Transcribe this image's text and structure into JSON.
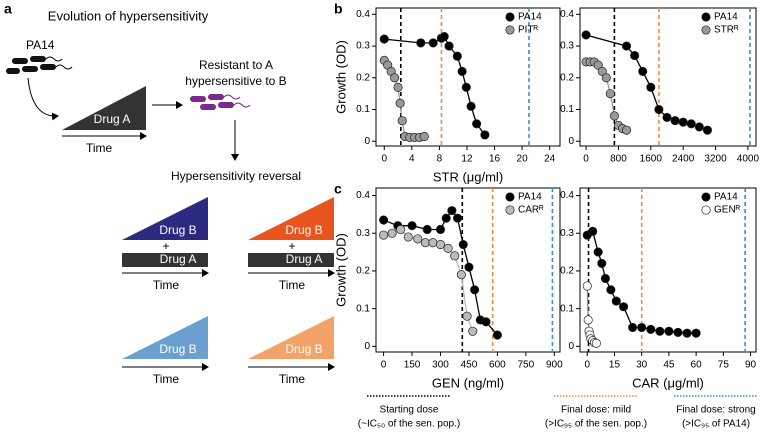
{
  "panel_labels": [
    "a",
    "b",
    "c"
  ],
  "diagram": {
    "title": "Evolution of hypersensitivity",
    "strain": "PA14",
    "drug_a": "Drug A",
    "time": "Time",
    "result": [
      "Resistant to A",
      "hypersensitive to B"
    ],
    "reversal": "Hypersensitivity reversal",
    "combos": [
      {
        "drug": "Drug B",
        "plus": "+",
        "base": "Drug A",
        "time": "Time",
        "color": "#2b2a80"
      },
      {
        "drug": "Drug B",
        "plus": "+",
        "base": "Drug A",
        "time": "Time",
        "color": "#e8541e"
      },
      {
        "drug": "Drug B",
        "time": "Time",
        "color": "#6a9fd0"
      },
      {
        "drug": "Drug B",
        "time": "Time",
        "color": "#f3a26a"
      }
    ]
  },
  "chart_data": [
    {
      "type": "line",
      "x_label": "STR (μg/ml)",
      "y_label": "Growth (OD)",
      "xlim": [
        -1.2,
        25.5
      ],
      "xticks": [
        0,
        4,
        8,
        12,
        16,
        20,
        24
      ],
      "ylim": [
        -0.015,
        0.42
      ],
      "yticks": [
        0,
        0.1,
        0.2,
        0.3,
        0.4
      ],
      "legend": "upper right",
      "series": [
        {
          "name": "PA14",
          "color": "#000000",
          "x": [
            0,
            5.3,
            7.1,
            8.3,
            8.7,
            9.4,
            10.6,
            11.3,
            11.9,
            12.6,
            13.4,
            14.6
          ],
          "values": [
            0.322,
            0.31,
            0.31,
            0.325,
            0.33,
            0.3,
            0.268,
            0.22,
            0.17,
            0.11,
            0.055,
            0.02
          ]
        },
        {
          "name": "PITᴿ",
          "color": "#999999",
          "x": [
            0,
            0.5,
            1,
            1.5,
            2,
            2.3,
            2.6,
            3,
            3.7,
            4.4,
            5.1,
            5.8
          ],
          "values": [
            0.255,
            0.24,
            0.22,
            0.2,
            0.17,
            0.12,
            0.065,
            0.015,
            0.012,
            0.012,
            0.012,
            0.015
          ]
        }
      ],
      "vlines": [
        {
          "value": 2.4,
          "color": "#000000"
        },
        {
          "value": 8.3,
          "color": "#f08a3c"
        },
        {
          "value": 21,
          "color": "#3a8fc4"
        }
      ]
    },
    {
      "type": "line",
      "xlim": [
        -150,
        4200
      ],
      "xticks": [
        0,
        800,
        1600,
        2400,
        3200,
        4000
      ],
      "ylim": [
        -0.015,
        0.42
      ],
      "yticks": [
        0,
        0.1,
        0.2,
        0.3,
        0.4
      ],
      "legend": "upper right",
      "series": [
        {
          "name": "PA14",
          "color": "#000000",
          "x": [
            0,
            1000,
            1200,
            1400,
            1600,
            1800,
            2000,
            2200,
            2400,
            2600,
            2800,
            3000
          ],
          "values": [
            0.335,
            0.3,
            0.27,
            0.22,
            0.17,
            0.1,
            0.075,
            0.065,
            0.06,
            0.055,
            0.045,
            0.035
          ]
        },
        {
          "name": "STRᴿ",
          "color": "#999999",
          "x": [
            0,
            100,
            200,
            300,
            400,
            500,
            600,
            700,
            800,
            900,
            1000
          ],
          "values": [
            0.25,
            0.25,
            0.25,
            0.24,
            0.22,
            0.2,
            0.15,
            0.08,
            0.05,
            0.04,
            0.035
          ]
        }
      ],
      "vlines": [
        {
          "value": 700,
          "color": "#000000"
        },
        {
          "value": 1800,
          "color": "#f08a3c"
        },
        {
          "value": 4050,
          "color": "#3a8fc4"
        }
      ]
    },
    {
      "type": "line",
      "x_label": "GEN (ng/ml)",
      "y_label": "Growth (OD)",
      "xlim": [
        -40,
        930
      ],
      "xticks": [
        0,
        150,
        300,
        450,
        600,
        750,
        900
      ],
      "ylim": [
        -0.015,
        0.42
      ],
      "yticks": [
        0,
        0.1,
        0.2,
        0.3,
        0.4
      ],
      "legend": "upper right",
      "series": [
        {
          "name": "PA14",
          "color": "#000000",
          "x": [
            0,
            75,
            150,
            230,
            300,
            330,
            360,
            390,
            420,
            450,
            480,
            510,
            540,
            600
          ],
          "values": [
            0.335,
            0.32,
            0.32,
            0.31,
            0.31,
            0.34,
            0.36,
            0.34,
            0.27,
            0.21,
            0.15,
            0.07,
            0.065,
            0.03
          ]
        },
        {
          "name": "CARᴿ",
          "color": "#bbbbbb",
          "x": [
            0,
            45,
            90,
            130,
            180,
            220,
            260,
            300,
            340,
            375,
            410,
            440,
            470
          ],
          "values": [
            0.295,
            0.3,
            0.31,
            0.29,
            0.285,
            0.275,
            0.275,
            0.27,
            0.26,
            0.24,
            0.19,
            0.08,
            0.04
          ]
        }
      ],
      "vlines": [
        {
          "value": 415,
          "color": "#000000"
        },
        {
          "value": 575,
          "color": "#f08a3c"
        },
        {
          "value": 890,
          "color": "#3a8fc4"
        }
      ]
    },
    {
      "type": "line",
      "x_label": "CAR (μg/ml)",
      "xlim": [
        -4,
        93
      ],
      "xticks": [
        0,
        15,
        30,
        45,
        60,
        75,
        90
      ],
      "ylim": [
        -0.015,
        0.42
      ],
      "yticks": [
        0,
        0.1,
        0.2,
        0.3,
        0.4
      ],
      "legend": "upper right",
      "series": [
        {
          "name": "PA14",
          "color": "#000000",
          "x": [
            0,
            3,
            6,
            8,
            10,
            13,
            16,
            20,
            25,
            30,
            35,
            40,
            45,
            50,
            55,
            60
          ],
          "values": [
            0.295,
            0.305,
            0.25,
            0.22,
            0.18,
            0.15,
            0.12,
            0.105,
            0.05,
            0.05,
            0.045,
            0.04,
            0.04,
            0.037,
            0.035,
            0.035
          ]
        },
        {
          "name": "GENᴿ",
          "color": "#ffffff",
          "x": [
            0,
            0.5,
            1,
            1.5,
            2,
            3,
            4,
            5
          ],
          "values": [
            0.16,
            0.07,
            0.04,
            0.03,
            0.02,
            0.015,
            0.01,
            0.008
          ]
        }
      ],
      "vlines": [
        {
          "value": 0.7,
          "color": "#000000"
        },
        {
          "value": 30,
          "color": "#f08a3c"
        },
        {
          "value": 87,
          "color": "#3a8fc4"
        }
      ]
    }
  ],
  "dose_key": [
    {
      "title": "Starting dose",
      "detail": "(~IC₅₀ of the sen. pop.)",
      "color": "#000000"
    },
    {
      "title": "Final dose: mild",
      "detail": "(>IC₉₅ of the sen. pop.)",
      "color": "#f08a3c"
    },
    {
      "title": "Final dose: strong",
      "detail": "(>IC₉₅ of PA14)",
      "color": "#3a8fc4"
    }
  ]
}
